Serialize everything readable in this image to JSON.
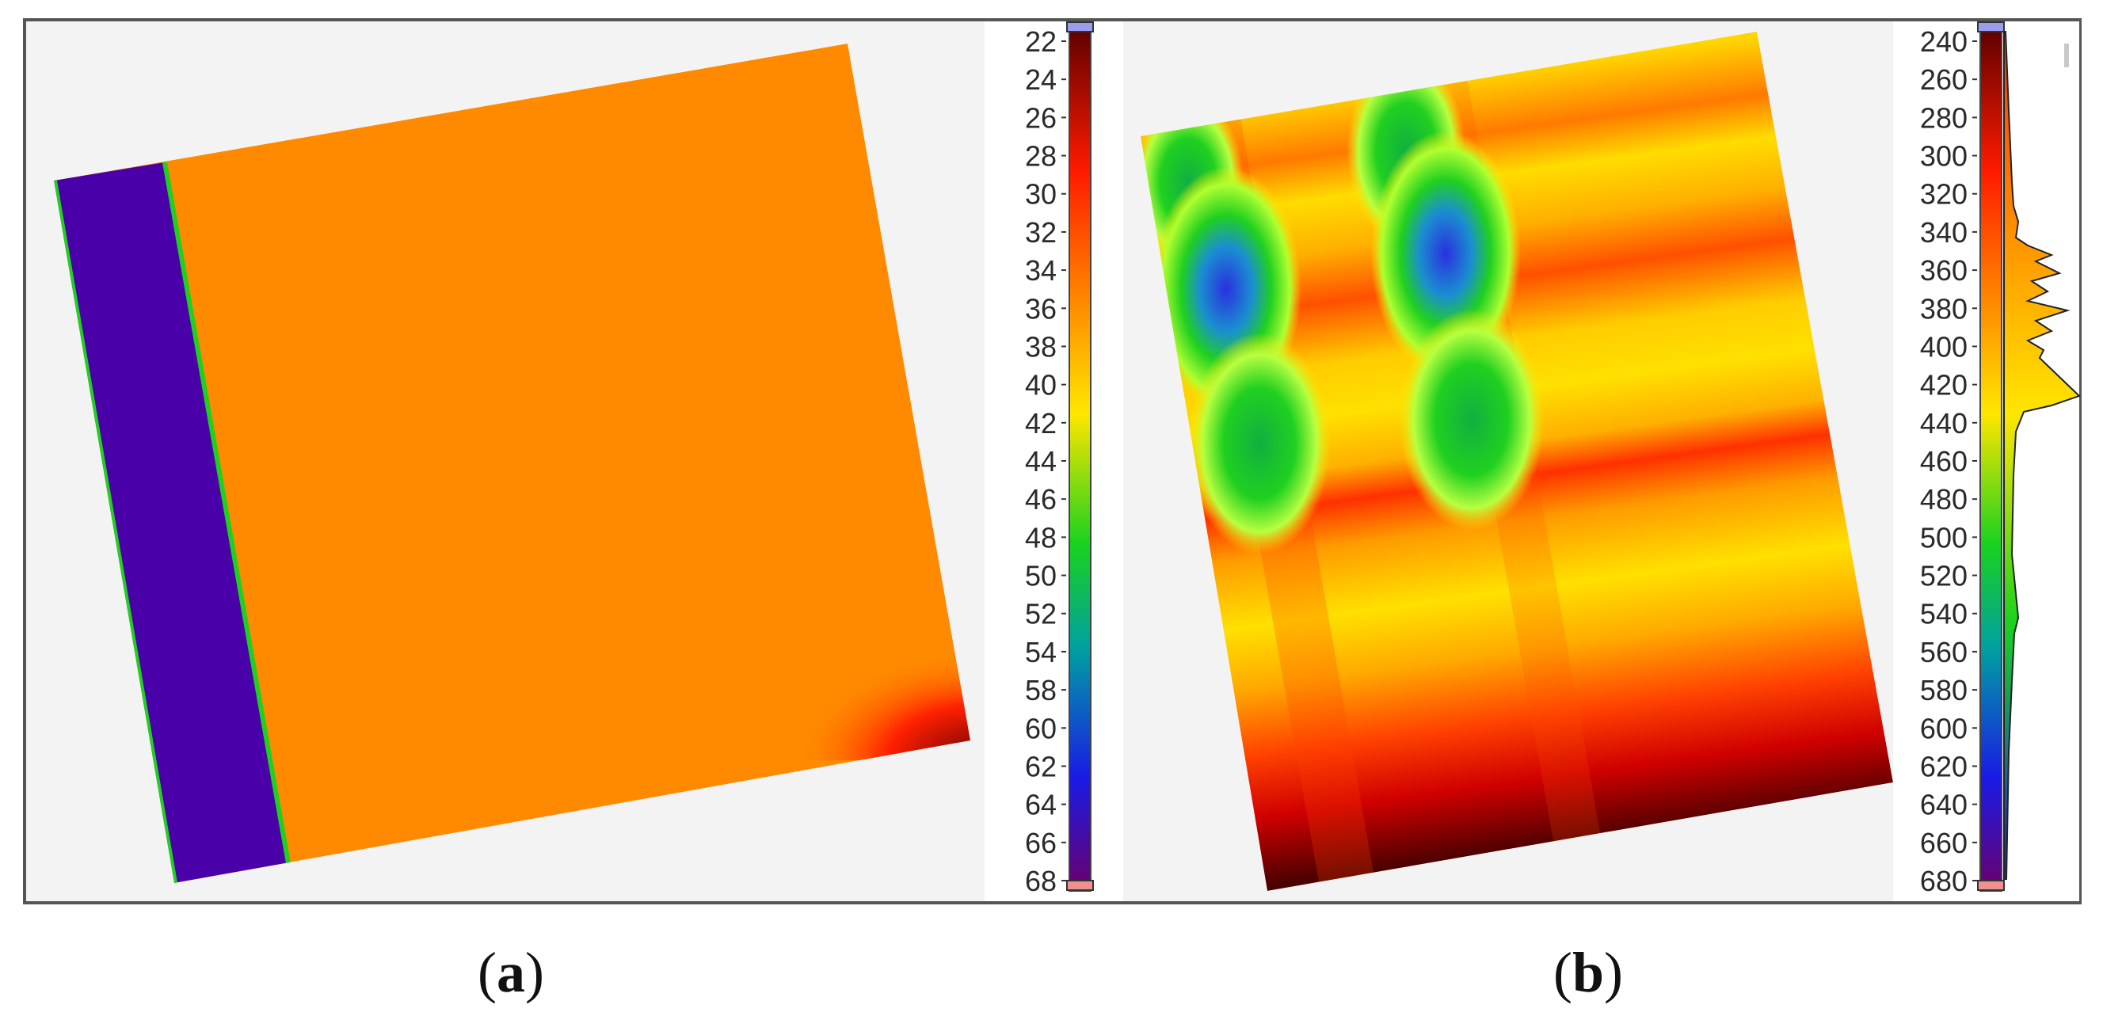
{
  "panels": [
    {
      "id": "a",
      "caption_open": "(",
      "caption_letter": "a",
      "caption_close": ")",
      "colorbar_ticks": [
        "22",
        "24",
        "26",
        "28",
        "30",
        "32",
        "34",
        "36",
        "38",
        "40",
        "42",
        "44",
        "46",
        "48",
        "50",
        "52",
        "54",
        "58",
        "60",
        "62",
        "64",
        "66",
        "68"
      ]
    },
    {
      "id": "b",
      "caption_open": "(",
      "caption_letter": "b",
      "caption_close": ")",
      "colorbar_ticks": [
        "240",
        "260",
        "280",
        "300",
        "320",
        "340",
        "360",
        "380",
        "400",
        "420",
        "440",
        "460",
        "480",
        "500",
        "520",
        "540",
        "560",
        "580",
        "600",
        "620",
        "640",
        "660",
        "680"
      ]
    }
  ],
  "colors": {
    "border": "#555555",
    "panel_bg": "#f3f3f3",
    "orange": "#ff8a00",
    "purple": "#4a00a8",
    "dark_red": "#5a0000",
    "red": "#ff1a00",
    "yellow": "#ffe600",
    "green": "#19d21e",
    "blue": "#1a1ae6"
  }
}
